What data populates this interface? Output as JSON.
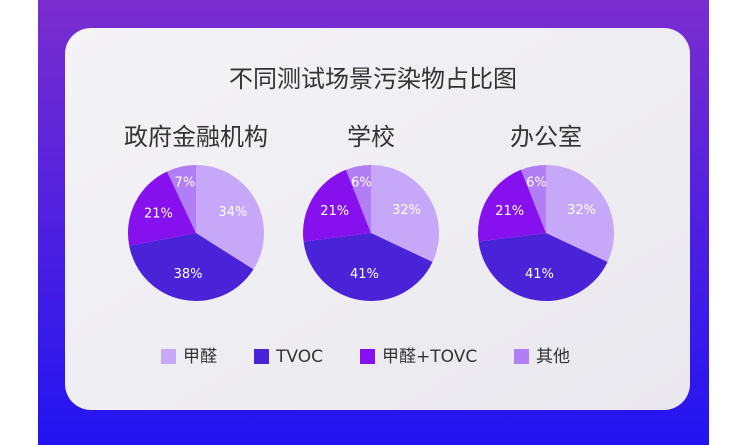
{
  "title": "不同测试场景污染物占比图",
  "chart_data": [
    {
      "type": "pie",
      "title": "政府金融机构",
      "categories": [
        "甲醛",
        "TVOC",
        "甲醛+TOVC",
        "其他"
      ],
      "values": [
        34,
        38,
        21,
        7
      ],
      "value_labels": [
        "34%",
        "38%",
        "21%",
        "7%"
      ],
      "colors": [
        "#c7a8f8",
        "#4a22d8",
        "#8610ee",
        "#b27ef6"
      ]
    },
    {
      "type": "pie",
      "title": "学校",
      "categories": [
        "甲醛",
        "TVOC",
        "甲醛+TOVC",
        "其他"
      ],
      "values": [
        32,
        41,
        21,
        6
      ],
      "value_labels": [
        "32%",
        "41%",
        "21%",
        "6%"
      ],
      "colors": [
        "#c7a8f8",
        "#4a22d8",
        "#8610ee",
        "#b27ef6"
      ]
    },
    {
      "type": "pie",
      "title": "办公室",
      "categories": [
        "甲醛",
        "TVOC",
        "甲醛+TOVC",
        "其他"
      ],
      "values": [
        32,
        41,
        21,
        6
      ],
      "value_labels": [
        "32%",
        "41%",
        "21%",
        "6%"
      ],
      "colors": [
        "#c7a8f8",
        "#4a22d8",
        "#8610ee",
        "#b27ef6"
      ]
    }
  ]
}
